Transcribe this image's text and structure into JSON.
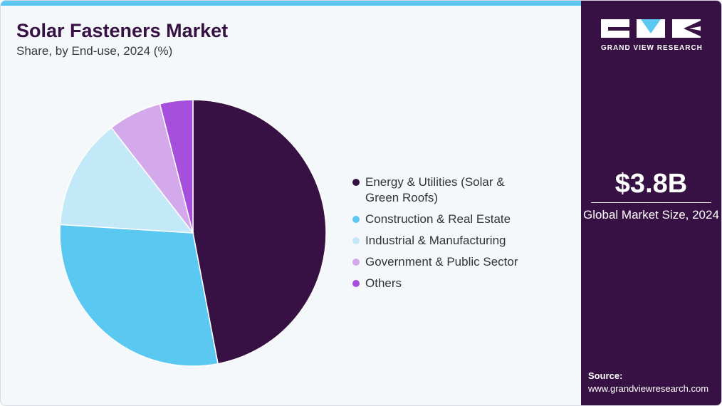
{
  "header": {
    "title": "Solar Fasteners Market",
    "subtitle": "Share, by End-use, 2024 (%)"
  },
  "chart_data": {
    "type": "pie",
    "title": "Solar Fasteners Market",
    "subtitle": "Share, by End-use, 2024 (%)",
    "slices": [
      {
        "label": "Energy & Utilities (Solar & Green Roofs)",
        "value": 47.0,
        "color": "#371144"
      },
      {
        "label": "Construction & Real Estate",
        "value": 29.0,
        "color": "#5bc8f2"
      },
      {
        "label": "Industrial & Manufacturing",
        "value": 13.5,
        "color": "#c3e9f8"
      },
      {
        "label": "Government & Public Sector",
        "value": 6.5,
        "color": "#d4a9ec"
      },
      {
        "label": "Others",
        "value": 4.0,
        "color": "#a54fdc"
      }
    ],
    "legend_position": "right"
  },
  "legend": {
    "items": [
      {
        "label": "Energy & Utilities (Solar & Green Roofs)",
        "color": "#371144"
      },
      {
        "label": "Construction & Real Estate",
        "color": "#5bc8f2"
      },
      {
        "label": "Industrial & Manufacturing",
        "color": "#c3e9f8"
      },
      {
        "label": "Government & Public Sector",
        "color": "#d4a9ec"
      },
      {
        "label": "Others",
        "color": "#a54fdc"
      }
    ]
  },
  "sidebar": {
    "brand": "GRAND VIEW RESEARCH",
    "market_size": "$3.8B",
    "market_size_label": "Global Market Size, 2024",
    "source_label": "Source:",
    "source_url": "www.grandviewresearch.com",
    "bg_color": "#371144"
  }
}
